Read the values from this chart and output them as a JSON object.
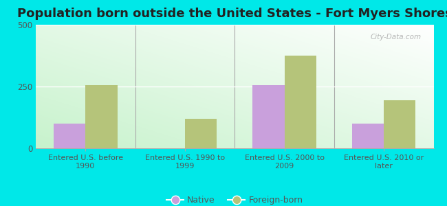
{
  "title": "Population born outside the United States - Fort Myers Shores",
  "categories": [
    "Entered U.S. before\n1990",
    "Entered U.S. 1990 to\n1999",
    "Entered U.S. 2000 to\n2009",
    "Entered U.S. 2010 or\nlater"
  ],
  "native_values": [
    100,
    0,
    255,
    100
  ],
  "foreign_values": [
    255,
    120,
    375,
    195
  ],
  "native_color": "#c9a0dc",
  "foreign_color": "#b5c47a",
  "background_outer": "#00e8e8",
  "ylim": [
    0,
    500
  ],
  "yticks": [
    0,
    250,
    500
  ],
  "bar_width": 0.32,
  "title_fontsize": 13,
  "legend_labels": [
    "Native",
    "Foreign-born"
  ],
  "watermark": "City-Data.com"
}
